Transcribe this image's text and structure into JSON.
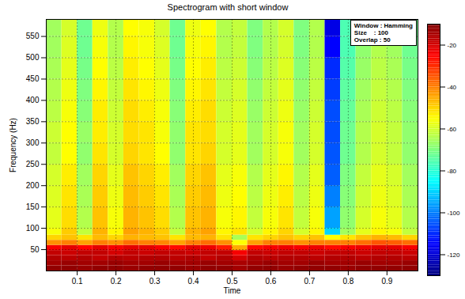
{
  "chart_data": {
    "type": "heatmap",
    "title": "Spectrogram with short window",
    "x_label": "Time",
    "y_label": "Frequency (Hz)",
    "xlim": [
      0.02,
      0.98
    ],
    "xticks": [
      0.1,
      0.2,
      0.3,
      0.4,
      0.5,
      0.6,
      0.7,
      0.8,
      0.9
    ],
    "ylim": [
      0,
      590
    ],
    "yticks": [
      50,
      100,
      150,
      200,
      250,
      300,
      350,
      400,
      450,
      500,
      550
    ],
    "grid": true,
    "annotation": [
      "Window : Hamming",
      "Size    : 100",
      "Overlap : 50"
    ],
    "time_edges": [
      0.02,
      0.06,
      0.1,
      0.14,
      0.18,
      0.22,
      0.26,
      0.3,
      0.34,
      0.38,
      0.42,
      0.46,
      0.5,
      0.54,
      0.58,
      0.62,
      0.66,
      0.7,
      0.74,
      0.78,
      0.82,
      0.86,
      0.9,
      0.94,
      0.98
    ],
    "frequency_edges": [
      0,
      12,
      24,
      36,
      48,
      60,
      72,
      84,
      100,
      150,
      200,
      250,
      300,
      350,
      400,
      450,
      500,
      550,
      590
    ],
    "values": [
      [
        -12,
        -12,
        -13,
        -12,
        -12,
        -13,
        -12,
        -12,
        -12,
        -13,
        -12,
        -12,
        -14,
        -12,
        -12,
        -13,
        -12,
        -12,
        -12,
        -13,
        -12,
        -12,
        -12,
        -12
      ],
      [
        -14,
        -13,
        -14,
        -14,
        -13,
        -14,
        -14,
        -13,
        -14,
        -14,
        -13,
        -14,
        -15,
        -14,
        -13,
        -14,
        -14,
        -13,
        -14,
        -14,
        -13,
        -14,
        -14,
        -13
      ],
      [
        -16,
        -17,
        -16,
        -18,
        -16,
        -17,
        -16,
        -16,
        -17,
        -16,
        -18,
        -16,
        -20,
        -16,
        -17,
        -16,
        -16,
        -17,
        -16,
        -16,
        -17,
        -16,
        -16,
        -17
      ],
      [
        -18,
        -19,
        -18,
        -18,
        -20,
        -18,
        -19,
        -18,
        -18,
        -19,
        -18,
        -18,
        -24,
        -18,
        -19,
        -18,
        -18,
        -19,
        -18,
        -18,
        -19,
        -18,
        -18,
        -19
      ],
      [
        -24,
        -22,
        -25,
        -22,
        -24,
        -22,
        -22,
        -24,
        -26,
        -22,
        -23,
        -28,
        -45,
        -26,
        -24,
        -23,
        -24,
        -23,
        -26,
        -24,
        -23,
        -22,
        -22,
        -24
      ],
      [
        -42,
        -40,
        -44,
        -40,
        -42,
        -38,
        -40,
        -41,
        -44,
        -40,
        -38,
        -42,
        -55,
        -44,
        -40,
        -40,
        -42,
        -40,
        -40,
        -40,
        -38,
        -35,
        -36,
        -38
      ],
      [
        -50,
        -48,
        -52,
        -47,
        -50,
        -46,
        -47,
        -48,
        -52,
        -47,
        -46,
        -52,
        -65,
        -52,
        -50,
        -48,
        -50,
        -48,
        -55,
        -52,
        -48,
        -46,
        -47,
        -50
      ],
      [
        -56,
        -49,
        -62,
        -46,
        -54,
        -44,
        -46,
        -49,
        -62,
        -46,
        -44,
        -54,
        -52,
        -60,
        -54,
        -50,
        -60,
        -54,
        -90,
        -66,
        -58,
        -54,
        -56,
        -62
      ],
      [
        -58,
        -51,
        -64,
        -48,
        -56,
        -46,
        -48,
        -51,
        -64,
        -48,
        -46,
        -56,
        -54,
        -62,
        -56,
        -52,
        -62,
        -56,
        -96,
        -68,
        -60,
        -56,
        -58,
        -64
      ],
      [
        -59,
        -52,
        -65,
        -49,
        -57,
        -47,
        -49,
        -52,
        -65,
        -49,
        -47,
        -57,
        -55,
        -63,
        -57,
        -53,
        -63,
        -57,
        -100,
        -69,
        -61,
        -57,
        -59,
        -65
      ],
      [
        -60,
        -53,
        -66,
        -50,
        -58,
        -48,
        -50,
        -53,
        -66,
        -50,
        -48,
        -58,
        -56,
        -64,
        -58,
        -54,
        -64,
        -58,
        -104,
        -70,
        -62,
        -58,
        -60,
        -66
      ],
      [
        -62,
        -55,
        -68,
        -52,
        -60,
        -50,
        -52,
        -55,
        -68,
        -52,
        -50,
        -60,
        -58,
        -66,
        -60,
        -56,
        -66,
        -60,
        -105,
        -72,
        -64,
        -60,
        -62,
        -68
      ],
      [
        -61,
        -55,
        -67,
        -53,
        -60,
        -51,
        -52,
        -56,
        -68,
        -52,
        -51,
        -60,
        -58,
        -66,
        -60,
        -56,
        -66,
        -60,
        -106,
        -72,
        -64,
        -60,
        -62,
        -68
      ],
      [
        -63,
        -56,
        -69,
        -53,
        -61,
        -51,
        -53,
        -56,
        -69,
        -53,
        -51,
        -61,
        -59,
        -67,
        -61,
        -57,
        -67,
        -61,
        -106,
        -73,
        -65,
        -61,
        -63,
        -69
      ],
      [
        -64,
        -57,
        -70,
        -54,
        -62,
        -52,
        -54,
        -57,
        -70,
        -54,
        -52,
        -62,
        -60,
        -68,
        -62,
        -58,
        -68,
        -62,
        -108,
        -74,
        -66,
        -62,
        -64,
        -70
      ],
      [
        -65,
        -58,
        -71,
        -55,
        -63,
        -53,
        -55,
        -58,
        -71,
        -55,
        -53,
        -63,
        -61,
        -69,
        -63,
        -59,
        -69,
        -63,
        -110,
        -75,
        -67,
        -63,
        -65,
        -71
      ],
      [
        -66,
        -59,
        -72,
        -56,
        -64,
        -54,
        -56,
        -59,
        -72,
        -56,
        -54,
        -64,
        -62,
        -70,
        -64,
        -60,
        -70,
        -64,
        -115,
        -76,
        -68,
        -64,
        -66,
        -72
      ],
      [
        -66,
        -60,
        -72,
        -57,
        -64,
        -55,
        -56,
        -60,
        -72,
        -57,
        -55,
        -64,
        -62,
        -70,
        -64,
        -60,
        -70,
        -64,
        -118,
        -76,
        -68,
        -64,
        -66,
        -72
      ]
    ],
    "colorbar": {
      "range": [
        -130,
        -10
      ],
      "ticks": [
        -20,
        -40,
        -60,
        -80,
        -100,
        -120
      ]
    }
  }
}
